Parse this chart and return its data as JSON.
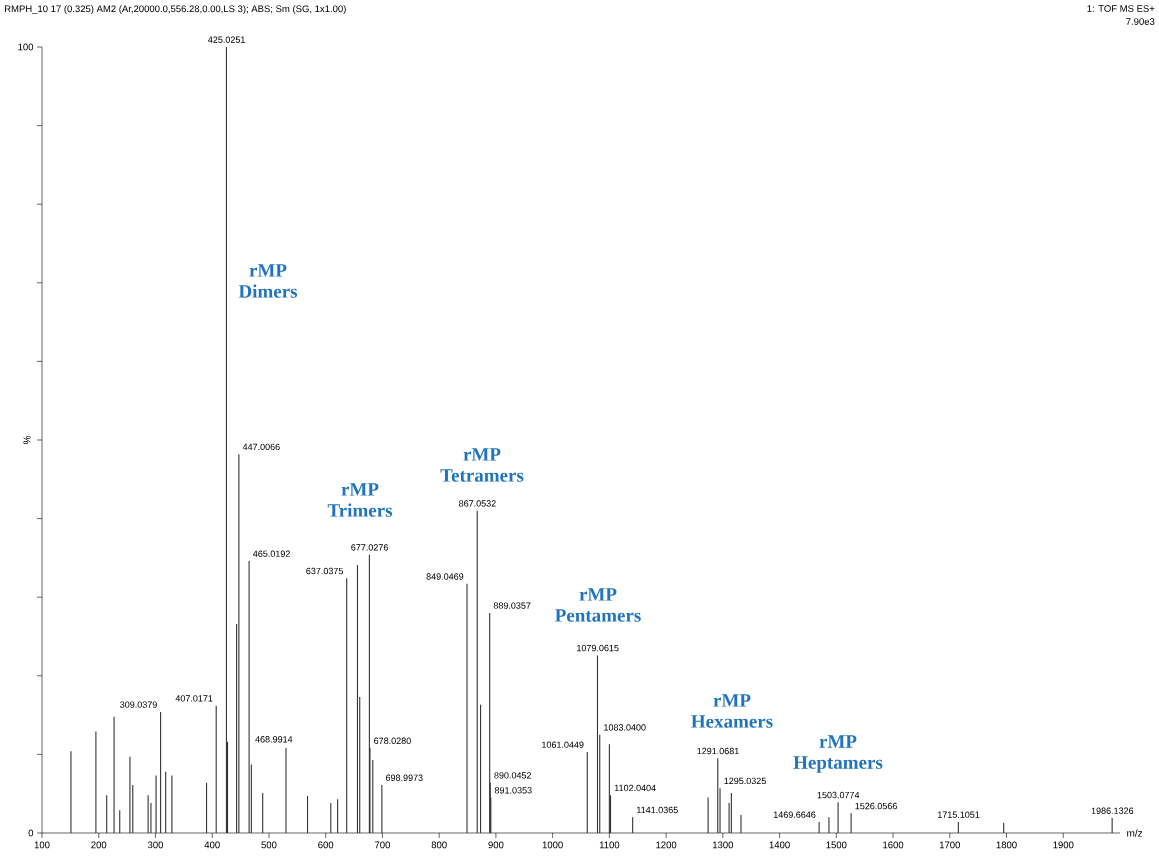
{
  "chart_data": {
    "type": "bar",
    "title": "RMPH_10 17 (0.325) AM2 (Ar,20000.0,556.28,0.00,LS 3); ABS; Sm (SG, 1x1.00)",
    "subtitle": "1: TOF MS ES+",
    "xlabel": "m/z",
    "ylabel": "%",
    "color": "#333333",
    "x": [
      151,
      195,
      214,
      227,
      237,
      255,
      260,
      287,
      292,
      301,
      309.0379,
      318,
      329,
      390,
      407.0171,
      425.0251,
      427,
      443,
      447.0066,
      465.0192,
      468.9914,
      489,
      530,
      568,
      609,
      621,
      637.0375,
      656,
      660,
      677.0276,
      678.028,
      683,
      698.9973,
      849.0469,
      867.0532,
      873,
      889.0357,
      890.0452,
      891.0353,
      1061.0449,
      1079.0615,
      1083.04,
      1100,
      1102.0404,
      1141.0365,
      1274,
      1291.0681,
      1295.0325,
      1311,
      1315,
      1332,
      1469.6646,
      1487,
      1503.0774,
      1526.0566,
      1715.1051,
      1795,
      1986.1326
    ],
    "values": [
      10.4,
      12.9,
      4.8,
      14.8,
      2.9,
      9.7,
      6.1,
      4.8,
      3.8,
      7.3,
      15.4,
      7.8,
      7.3,
      6.4,
      16.2,
      100,
      11.6,
      26.6,
      48.2,
      34.6,
      8.7,
      5.1,
      10.8,
      4.7,
      3.8,
      4.3,
      32.4,
      34.1,
      17.3,
      35.4,
      10.8,
      9.3,
      6.1,
      31.7,
      41.0,
      16.3,
      28.0,
      6.4,
      4.5,
      10.3,
      22.6,
      12.5,
      11.3,
      4.8,
      2.0,
      4.5,
      9.5,
      5.7,
      3.8,
      5.1,
      2.3,
      1.4,
      2.0,
      3.9,
      2.5,
      1.4,
      1.3,
      1.9
    ],
    "xlim": [
      100,
      2000
    ],
    "xticks": [
      100,
      200,
      300,
      400,
      500,
      600,
      700,
      800,
      900,
      1000,
      1100,
      1200,
      1300,
      1400,
      1500,
      1600,
      1700,
      1800,
      1900
    ],
    "ylim": [
      0,
      100
    ],
    "yticks": [
      0,
      {
        "value": 10,
        "label": null
      },
      {
        "value": 20,
        "label": null
      },
      {
        "value": 30,
        "label": null
      },
      {
        "value": 40,
        "label": null
      },
      {
        "value": 50,
        "label": null
      },
      {
        "value": 60,
        "label": null
      },
      {
        "value": 70,
        "label": null
      },
      {
        "value": 80,
        "label": null
      },
      {
        "value": 90,
        "label": null
      },
      100
    ],
    "annotations": [
      "7.90e3",
      "rMP Dimers",
      "rMP Trimers",
      "rMP Tetramers",
      "rMP Pentamers",
      "rMP Hexamers",
      "rMP Heptamers",
      {
        "text": "309.0379",
        "x": 309.0379,
        "y": 15.4
      },
      {
        "text": "407.0171",
        "x": 407.0171,
        "y": 16.2
      },
      {
        "text": "425.0251",
        "x": 425.0251,
        "y": 100
      },
      {
        "text": "447.0066",
        "x": 447.0066,
        "y": 48.2
      },
      {
        "text": "465.0192",
        "x": 465.0192,
        "y": 34.6
      },
      {
        "text": "468.9914",
        "x": 468.9914,
        "y": 8.7
      },
      {
        "text": "637.0375",
        "x": 637.0375,
        "y": 32.4
      },
      {
        "text": "677.0276",
        "x": 677.0276,
        "y": 35.4
      },
      {
        "text": "678.0280",
        "x": 678.028,
        "y": 10.8
      },
      {
        "text": "698.9973",
        "x": 698.9973,
        "y": 6.1
      },
      {
        "text": "849.0469",
        "x": 849.0469,
        "y": 31.7
      },
      {
        "text": "867.0532",
        "x": 867.0532,
        "y": 41.0
      },
      {
        "text": "889.0357",
        "x": 889.0357,
        "y": 28.0
      },
      {
        "text": "890.0452",
        "x": 890.0452,
        "y": 6.4
      },
      {
        "text": "891.0353",
        "x": 891.0353,
        "y": 4.5
      },
      {
        "text": "1061.0449",
        "x": 1061.0449,
        "y": 10.3
      },
      {
        "text": "1079.0615",
        "x": 1079.0615,
        "y": 22.6
      },
      {
        "text": "1083.0400",
        "x": 1083.04,
        "y": 12.5
      },
      {
        "text": "1102.0404",
        "x": 1102.0404,
        "y": 4.8
      },
      {
        "text": "1141.0365",
        "x": 1141.0365,
        "y": 2.0
      },
      {
        "text": "1291.0681",
        "x": 1291.0681,
        "y": 9.5
      },
      {
        "text": "1295.0325",
        "x": 1295.0325,
        "y": 5.7
      },
      {
        "text": "1469.6646",
        "x": 1469.6646,
        "y": 1.4
      },
      {
        "text": "1503.0774",
        "x": 1503.0774,
        "y": 3.9
      },
      {
        "text": "1526.0566",
        "x": 1526.0566,
        "y": 2.5
      },
      {
        "text": "1715.1051",
        "x": 1715.1051,
        "y": 1.4
      },
      {
        "text": "1986.1326",
        "x": 1986.1326,
        "y": 1.9
      }
    ]
  }
}
